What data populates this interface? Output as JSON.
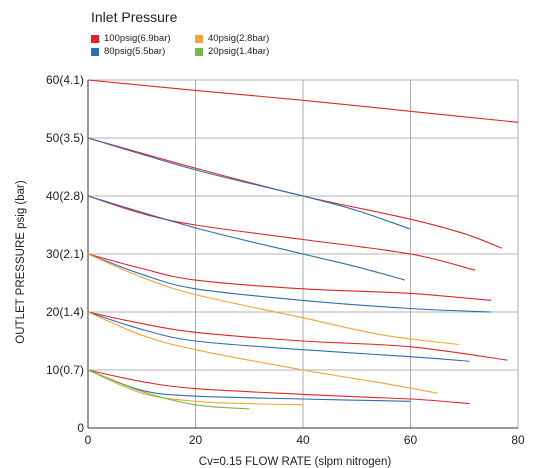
{
  "legend": {
    "title": "Inlet Pressure",
    "items": [
      {
        "label": "100psig(6.9bar)",
        "color": "#e0242a"
      },
      {
        "label": "40psig(2.8bar)",
        "color": "#f2a43a"
      },
      {
        "label": "80psig(5.5bar)",
        "color": "#2f6db0"
      },
      {
        "label": "20psig(1.4bar)",
        "color": "#7ab648"
      }
    ]
  },
  "chart_data": {
    "type": "line",
    "xlabel": "Cv=0.15 FLOW RATE (slpm nitrogen)",
    "ylabel": "OUTLET PRESSURE psig (bar)",
    "xlim": [
      0,
      80
    ],
    "ylim": [
      0,
      60
    ],
    "grid": true,
    "x_ticks": [
      {
        "value": 0,
        "label": "0"
      },
      {
        "value": 20,
        "label": "20"
      },
      {
        "value": 40,
        "label": "40"
      },
      {
        "value": 60,
        "label": "60"
      },
      {
        "value": 80,
        "label": "80"
      }
    ],
    "y_ticks": [
      {
        "value": 0,
        "label": "0"
      },
      {
        "value": 10,
        "label": "10(0.7)"
      },
      {
        "value": 20,
        "label": "20(1.4)"
      },
      {
        "value": 30,
        "label": "30(2.1)"
      },
      {
        "value": 40,
        "label": "40(2.8)"
      },
      {
        "value": 50,
        "label": "50(3.5)"
      },
      {
        "value": 60,
        "label": "60(4.1)"
      }
    ],
    "series": [
      {
        "name": "100psig(6.9bar)",
        "color": "#e0242a",
        "points": [
          [
            0,
            60
          ],
          [
            20,
            58.2
          ],
          [
            40,
            56.5
          ],
          [
            60,
            54.6
          ],
          [
            80,
            52.7
          ]
        ]
      },
      {
        "name": "100psig(6.9bar)",
        "color": "#e0242a",
        "points": [
          [
            0,
            50
          ],
          [
            20,
            44.8
          ],
          [
            40,
            40
          ],
          [
            60,
            36
          ],
          [
            70,
            33.5
          ],
          [
            77,
            31
          ]
        ]
      },
      {
        "name": "100psig(6.9bar)",
        "color": "#e0242a",
        "points": [
          [
            0,
            40
          ],
          [
            10,
            37
          ],
          [
            20,
            35
          ],
          [
            40,
            32.5
          ],
          [
            60,
            30
          ],
          [
            72,
            27.2
          ]
        ]
      },
      {
        "name": "100psig(6.9bar)",
        "color": "#e0242a",
        "points": [
          [
            0,
            30
          ],
          [
            10,
            27.5
          ],
          [
            20,
            25.5
          ],
          [
            40,
            24
          ],
          [
            60,
            23.2
          ],
          [
            75,
            22
          ]
        ]
      },
      {
        "name": "100psig(6.9bar)",
        "color": "#e0242a",
        "points": [
          [
            0,
            20
          ],
          [
            10,
            18
          ],
          [
            20,
            16.5
          ],
          [
            40,
            15
          ],
          [
            60,
            14
          ],
          [
            78,
            11.7
          ]
        ]
      },
      {
        "name": "100psig(6.9bar)",
        "color": "#e0242a",
        "points": [
          [
            0,
            10
          ],
          [
            10,
            8
          ],
          [
            20,
            6.8
          ],
          [
            40,
            5.8
          ],
          [
            60,
            5
          ],
          [
            71,
            4.2
          ]
        ]
      },
      {
        "name": "80psig(5.5bar)",
        "color": "#2f6db0",
        "points": [
          [
            0,
            50
          ],
          [
            20,
            44.5
          ],
          [
            40,
            40
          ],
          [
            50,
            37.5
          ],
          [
            60,
            34.3
          ]
        ]
      },
      {
        "name": "80psig(5.5bar)",
        "color": "#2f6db0",
        "points": [
          [
            0,
            40
          ],
          [
            20,
            34.5
          ],
          [
            40,
            30
          ],
          [
            50,
            27.8
          ],
          [
            59,
            25.5
          ]
        ]
      },
      {
        "name": "80psig(5.5bar)",
        "color": "#2f6db0",
        "points": [
          [
            0,
            30
          ],
          [
            10,
            26.5
          ],
          [
            20,
            24
          ],
          [
            40,
            22
          ],
          [
            60,
            20.6
          ],
          [
            75,
            20
          ]
        ]
      },
      {
        "name": "80psig(5.5bar)",
        "color": "#2f6db0",
        "points": [
          [
            0,
            20
          ],
          [
            10,
            17
          ],
          [
            20,
            15
          ],
          [
            40,
            13.5
          ],
          [
            60,
            12.3
          ],
          [
            71,
            11.5
          ]
        ]
      },
      {
        "name": "80psig(5.5bar)",
        "color": "#2f6db0",
        "points": [
          [
            0,
            10
          ],
          [
            10,
            6.5
          ],
          [
            20,
            5.5
          ],
          [
            40,
            5
          ],
          [
            60,
            4.6
          ]
        ]
      },
      {
        "name": "40psig(2.8bar)",
        "color": "#f2a43a",
        "points": [
          [
            0,
            30
          ],
          [
            10,
            26
          ],
          [
            20,
            23
          ],
          [
            40,
            19
          ],
          [
            55,
            16
          ],
          [
            69,
            14.4
          ]
        ]
      },
      {
        "name": "40psig(2.8bar)",
        "color": "#f2a43a",
        "points": [
          [
            0,
            20
          ],
          [
            10,
            16
          ],
          [
            20,
            13.5
          ],
          [
            40,
            10
          ],
          [
            55,
            7.7
          ],
          [
            65,
            6
          ]
        ]
      },
      {
        "name": "40psig(2.8bar)",
        "color": "#f2a43a",
        "points": [
          [
            0,
            10
          ],
          [
            10,
            6
          ],
          [
            20,
            4.6
          ],
          [
            30,
            4.2
          ],
          [
            40,
            4
          ]
        ]
      },
      {
        "name": "20psig(1.4bar)",
        "color": "#7ab648",
        "points": [
          [
            0,
            10
          ],
          [
            10,
            6.3
          ],
          [
            20,
            4
          ],
          [
            30,
            3.3
          ]
        ]
      }
    ]
  }
}
